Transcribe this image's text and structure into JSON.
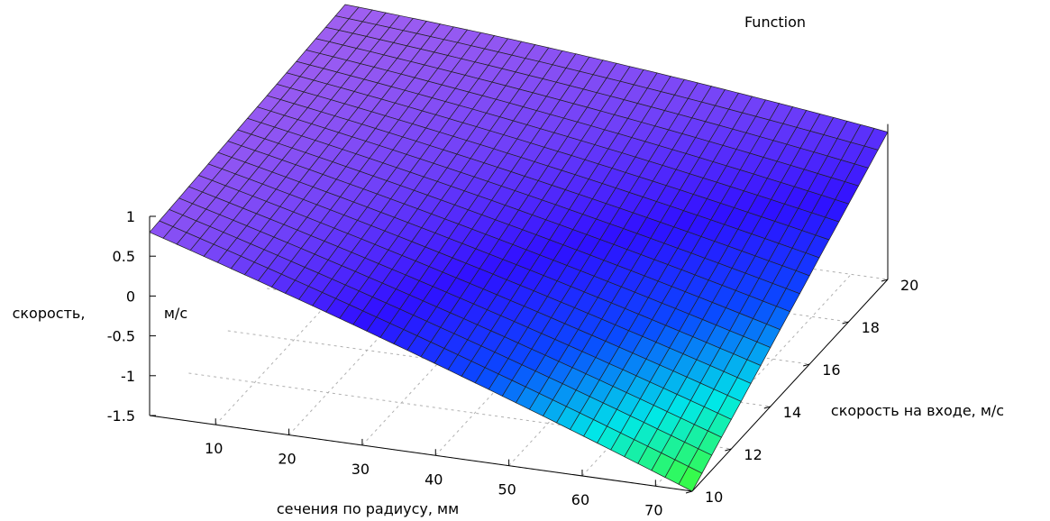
{
  "chart_data": {
    "type": "surface",
    "title": "",
    "legend_label": "Function",
    "xlabel": "сечения по радиусу, мм",
    "ylabel": "скорость на входе, м/с",
    "zlabel_part1": "скорость,",
    "zlabel_part2": "м/с",
    "x_range": [
      1,
      75
    ],
    "y_range": [
      10,
      20
    ],
    "z_range": [
      -1.5,
      1
    ],
    "x_ticks": [
      "10",
      "20",
      "30",
      "40",
      "50",
      "60",
      "70"
    ],
    "y_ticks": [
      "10",
      "12",
      "14",
      "16",
      "18",
      "20"
    ],
    "z_ticks": [
      "-1.5",
      "-1",
      "-0.5",
      "0",
      "0.5",
      "1"
    ],
    "corner_values": [
      {
        "x": 1,
        "y": 10,
        "z": 0.8
      },
      {
        "x": 75,
        "y": 10,
        "z": -1.5
      },
      {
        "x": 1,
        "y": 20,
        "z": 1.0
      },
      {
        "x": 75,
        "y": 20,
        "z": 0.35
      }
    ],
    "grid_x_count": 40,
    "grid_y_count": 20,
    "colormap": [
      "#a060f0",
      "#7040f8",
      "#3010ff",
      "#0a48ff",
      "#00e8e8",
      "#40ff30"
    ]
  }
}
